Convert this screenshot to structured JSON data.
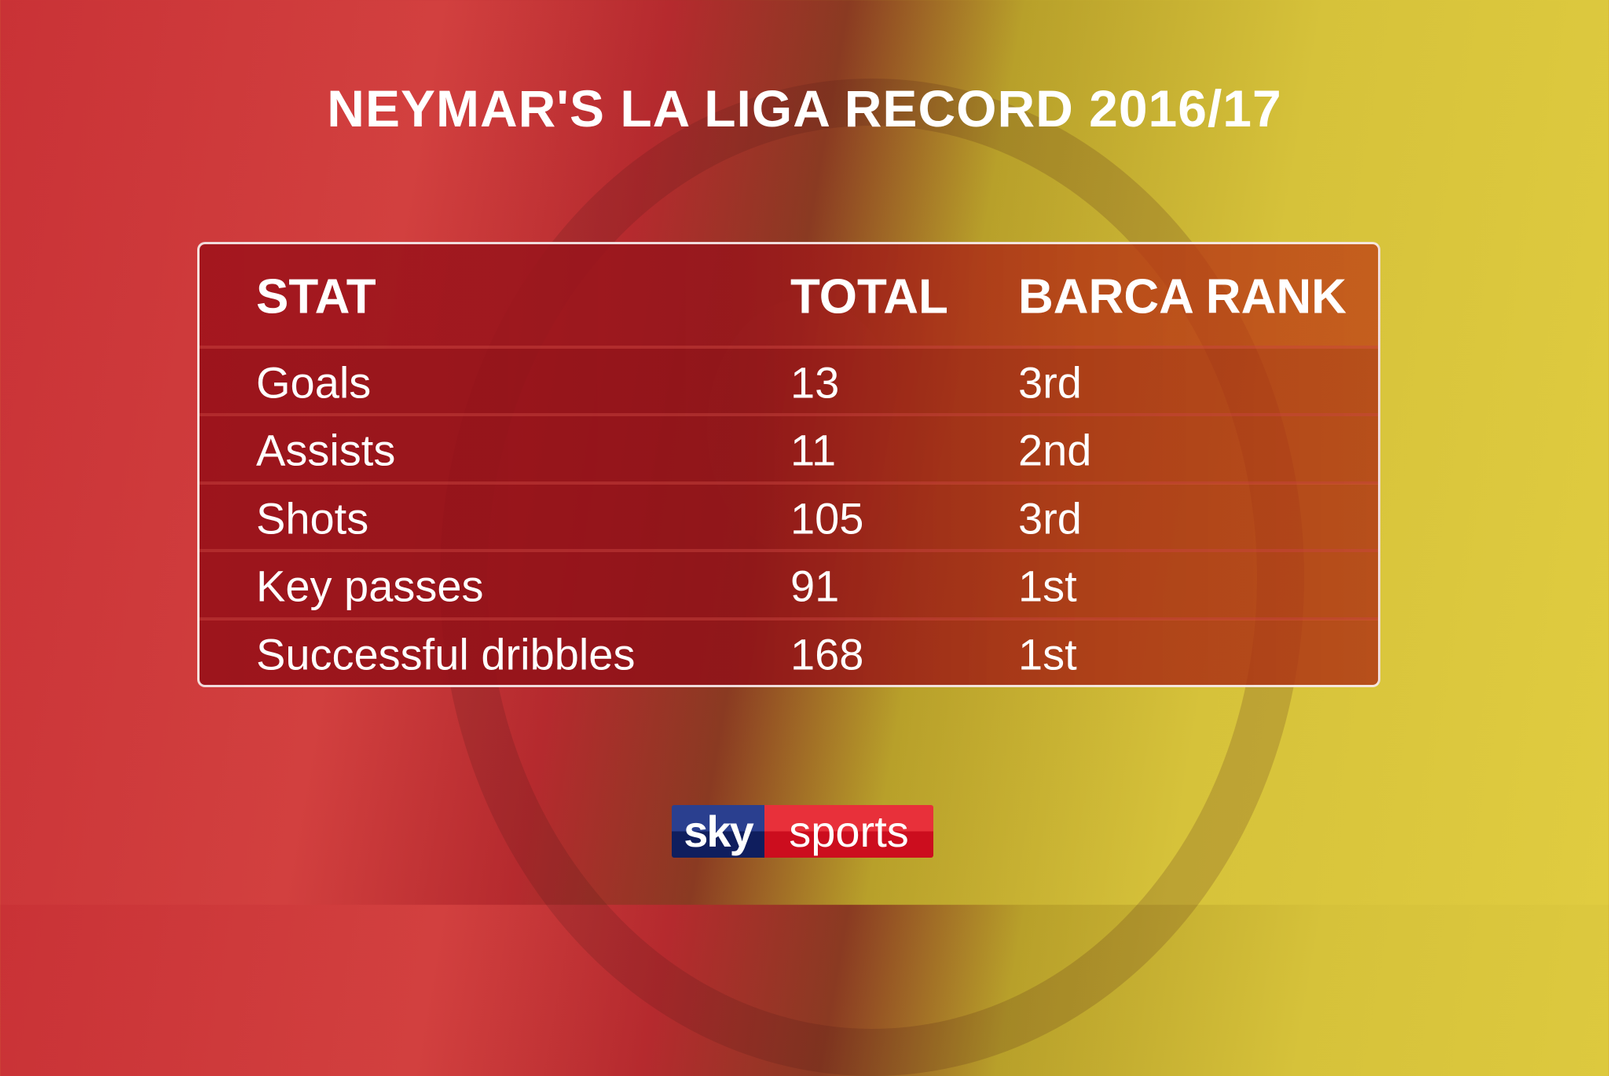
{
  "title": "NEYMAR'S LA LIGA RECORD 2016/17",
  "table": {
    "headers": [
      "STAT",
      "TOTAL",
      "BARCA RANK"
    ],
    "rows": [
      {
        "stat": "Goals",
        "total": "13",
        "rank": "3rd"
      },
      {
        "stat": "Assists",
        "total": "11",
        "rank": "2nd"
      },
      {
        "stat": "Shots",
        "total": "105",
        "rank": "3rd"
      },
      {
        "stat": "Key passes",
        "total": "91",
        "rank": "1st"
      },
      {
        "stat": "Successful dribbles",
        "total": "168",
        "rank": "1st"
      }
    ]
  },
  "logo": {
    "sky": "sky",
    "sports": "sports"
  },
  "colors": {
    "red": "#c93236",
    "yellow": "#d6c23a",
    "sky_blue": "#1a2a70",
    "sky_red": "#d81e2a"
  }
}
